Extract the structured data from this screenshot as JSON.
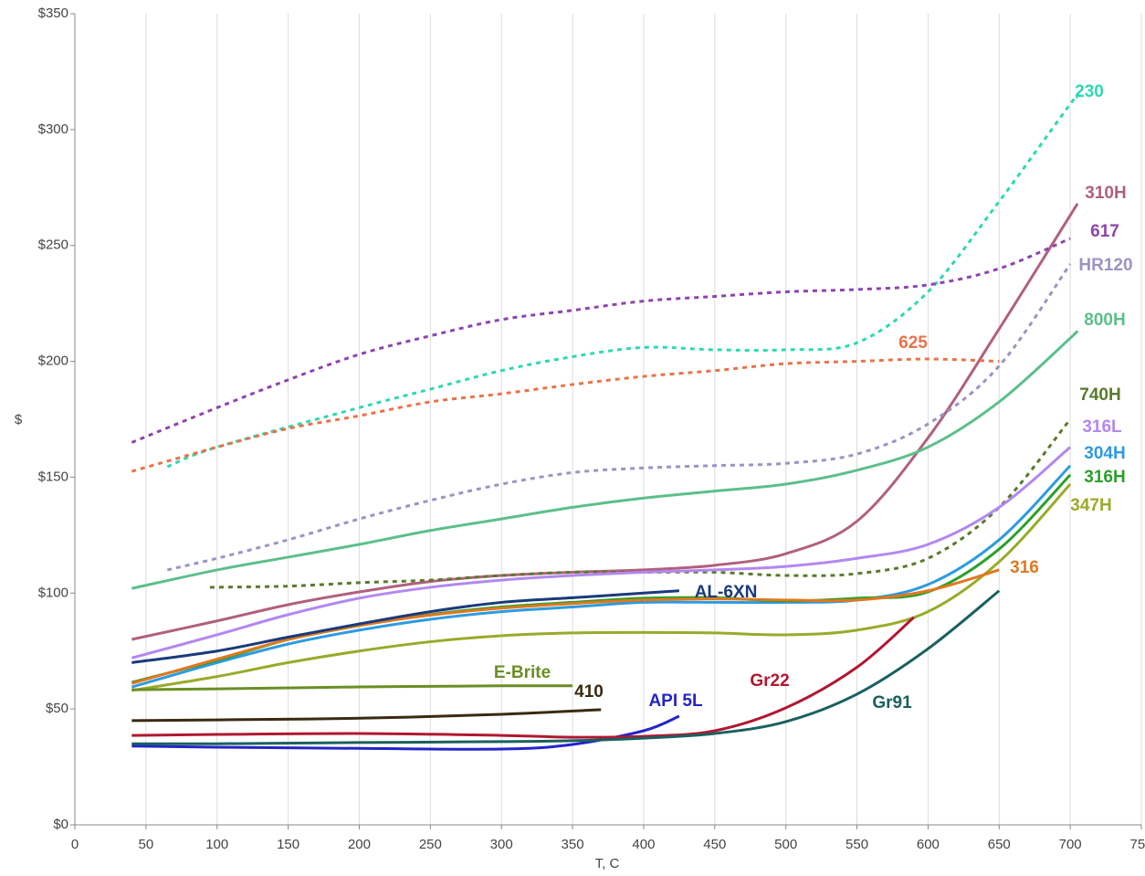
{
  "chart_data": {
    "type": "line",
    "x_label": "T, C",
    "y_label": "$",
    "xlim": [
      0,
      750
    ],
    "xticks": [
      0,
      50,
      100,
      150,
      200,
      250,
      300,
      350,
      400,
      450,
      500,
      550,
      600,
      650,
      700,
      750
    ],
    "ylim": [
      0,
      350
    ],
    "yticks": [
      {
        "value": 0,
        "label": "$0"
      },
      {
        "value": 50,
        "label": "$50"
      },
      {
        "value": 100,
        "label": "$100"
      },
      {
        "value": 150,
        "label": "$150"
      },
      {
        "value": 200,
        "label": "$200"
      },
      {
        "value": 250,
        "label": "$250"
      },
      {
        "value": 300,
        "label": "$300"
      },
      {
        "value": 350,
        "label": "$350"
      }
    ],
    "xgrid": true,
    "series": [
      {
        "name": "230",
        "color": "#2ed8b2",
        "dashed": true,
        "x": [
          65,
          100,
          200,
          250,
          300,
          350,
          400,
          450,
          500,
          550,
          600,
          650,
          700,
          705
        ],
        "values": [
          154.5,
          163,
          180,
          188,
          196,
          202,
          206,
          205,
          205,
          208,
          230,
          269,
          311,
          314
        ]
      },
      {
        "name": "310H",
        "color": "#b0607e",
        "dashed": false,
        "x": [
          40,
          100,
          150,
          200,
          250,
          300,
          350,
          400,
          450,
          500,
          550,
          600,
          650,
          700,
          703
        ],
        "values": [
          80,
          88,
          95,
          100.5,
          105,
          107.6,
          109,
          110,
          112,
          117,
          131,
          167,
          214,
          263,
          266
        ]
      },
      {
        "name": "617",
        "color": "#8e44ad",
        "dashed": true,
        "x": [
          40,
          100,
          150,
          200,
          250,
          300,
          350,
          400,
          450,
          500,
          550,
          600,
          650,
          700
        ],
        "values": [
          165,
          180,
          192,
          203,
          211,
          218,
          222,
          226,
          228,
          230,
          231,
          233,
          240,
          253
        ]
      },
      {
        "name": "HR120",
        "color": "#9a94c4",
        "dashed": true,
        "x": [
          65,
          100,
          150,
          200,
          250,
          300,
          350,
          400,
          450,
          500,
          550,
          600,
          650,
          700
        ],
        "values": [
          110,
          115,
          123,
          132,
          140,
          147,
          152,
          154,
          155,
          156,
          160,
          173,
          198,
          242
        ]
      },
      {
        "name": "800H",
        "color": "#5cbf8c",
        "dashed": false,
        "x": [
          40,
          100,
          150,
          200,
          250,
          300,
          350,
          400,
          450,
          500,
          550,
          600,
          650,
          700,
          703
        ],
        "values": [
          102,
          110,
          115.5,
          121,
          127,
          132,
          137,
          141,
          144,
          147,
          153,
          163,
          182.5,
          210,
          212
        ]
      },
      {
        "name": "625",
        "color": "#e8734a",
        "dashed": true,
        "x": [
          40,
          100,
          150,
          200,
          250,
          300,
          350,
          400,
          450,
          500,
          550,
          600,
          650
        ],
        "values": [
          152.5,
          163,
          171,
          176.5,
          182.5,
          186,
          190,
          193.5,
          196,
          199,
          200,
          201,
          200
        ]
      },
      {
        "name": "740H",
        "color": "#5a7a2a",
        "dashed": true,
        "x": [
          95,
          150,
          200,
          250,
          300,
          350,
          400,
          450,
          500,
          550,
          600,
          650,
          700
        ],
        "values": [
          102.5,
          103,
          104.5,
          105.6,
          107.6,
          109,
          109,
          109,
          107.6,
          108.4,
          115,
          137,
          175
        ]
      },
      {
        "name": "316L",
        "color": "#b388f0",
        "dashed": false,
        "x": [
          40,
          100,
          150,
          200,
          250,
          300,
          350,
          400,
          450,
          500,
          550,
          600,
          650,
          700
        ],
        "values": [
          72,
          82,
          90.7,
          97.8,
          102.5,
          105.6,
          107.6,
          109,
          110,
          111.5,
          115,
          121,
          137,
          163
        ]
      },
      {
        "name": "304H",
        "color": "#2d9be0",
        "dashed": false,
        "x": [
          40,
          100,
          150,
          200,
          250,
          300,
          350,
          400,
          450,
          500,
          550,
          600,
          650,
          700
        ],
        "values": [
          59.5,
          70,
          78,
          84,
          88.7,
          92,
          94,
          96,
          96,
          96,
          97,
          103.7,
          123,
          155
        ]
      },
      {
        "name": "316H",
        "color": "#2aa02a",
        "dashed": false,
        "x": [
          40,
          100,
          150,
          200,
          250,
          300,
          350,
          400,
          450,
          500,
          550,
          600,
          650,
          700
        ],
        "values": [
          61.5,
          71,
          80,
          86,
          90.7,
          94,
          96,
          97.8,
          98,
          96.6,
          97.8,
          100.5,
          119,
          151
        ]
      },
      {
        "name": "347H",
        "color": "#9aaa2a",
        "dashed": false,
        "x": [
          40,
          100,
          150,
          200,
          250,
          300,
          350,
          400,
          450,
          500,
          550,
          600,
          650,
          700
        ],
        "values": [
          58,
          64,
          70,
          75,
          79,
          81.6,
          82.8,
          83,
          82.8,
          82,
          84,
          92,
          113.5,
          147
        ]
      },
      {
        "name": "316",
        "color": "#e07820",
        "dashed": false,
        "x": [
          40,
          100,
          150,
          200,
          250,
          300,
          350,
          400,
          450,
          500,
          550,
          600,
          650
        ],
        "values": [
          61,
          71.5,
          80,
          86,
          90.5,
          93.5,
          95.5,
          97,
          97.5,
          97,
          97,
          101,
          110
        ]
      },
      {
        "name": "AL-6XN",
        "color": "#1a3a7a",
        "dashed": false,
        "x": [
          40,
          100,
          150,
          200,
          250,
          300,
          350,
          400,
          425
        ],
        "values": [
          70,
          75,
          81,
          86.7,
          92,
          96,
          98,
          100,
          101
        ]
      },
      {
        "name": "E-Brite",
        "color": "#6b8e23",
        "dashed": false,
        "x": [
          40,
          100,
          200,
          300,
          350
        ],
        "values": [
          58.3,
          58.7,
          59.5,
          60,
          60
        ]
      },
      {
        "name": "410",
        "color": "#3a2a10",
        "dashed": false,
        "x": [
          40,
          100,
          200,
          300,
          370
        ],
        "values": [
          45,
          45.3,
          46,
          47.7,
          49.7
        ]
      },
      {
        "name": "API 5L",
        "color": "#2424c8",
        "dashed": false,
        "x": [
          40,
          100,
          200,
          300,
          350,
          400,
          425
        ],
        "values": [
          34,
          33.5,
          33,
          32.7,
          34.7,
          40.6,
          46.9
        ]
      },
      {
        "name": "Gr22",
        "color": "#b01830",
        "dashed": false,
        "x": [
          40,
          100,
          200,
          300,
          350,
          400,
          450,
          500,
          550,
          590
        ],
        "values": [
          38.6,
          39,
          39.4,
          38.6,
          37.8,
          38.2,
          40.6,
          50.5,
          68,
          89.5
        ]
      },
      {
        "name": "Gr91",
        "color": "#1a6060",
        "dashed": false,
        "x": [
          40,
          100,
          200,
          300,
          350,
          400,
          450,
          500,
          550,
          600,
          650
        ],
        "values": [
          35,
          35,
          35.5,
          35.9,
          36.3,
          37.4,
          39.4,
          44.5,
          56.4,
          76,
          101
        ]
      }
    ]
  }
}
